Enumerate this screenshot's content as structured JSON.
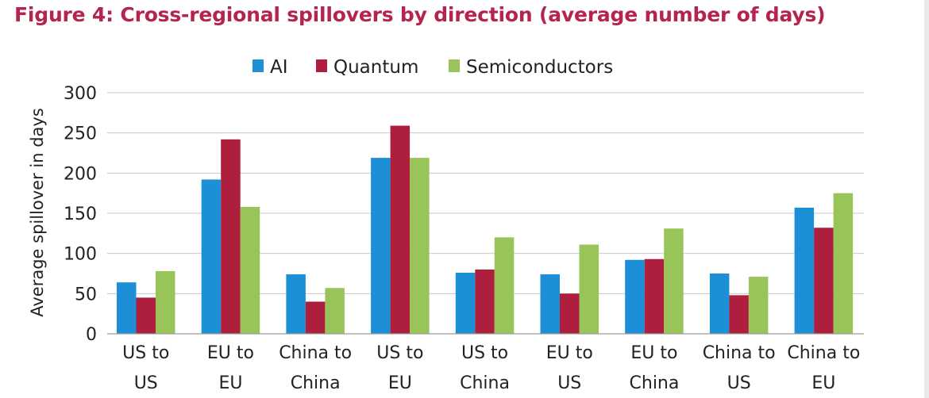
{
  "chart_data": {
    "type": "bar",
    "title": "Figure 4: Cross-regional spillovers by direction (average number of days)",
    "xlabel": "",
    "ylabel": "Average spillover in days",
    "ylim": [
      0,
      300
    ],
    "yticks": [
      0,
      50,
      100,
      150,
      200,
      250,
      300
    ],
    "grid": true,
    "legend_position": "top-center",
    "categories": [
      [
        "US to",
        "US"
      ],
      [
        "EU to",
        "EU"
      ],
      [
        "China to",
        "China"
      ],
      [
        "US to",
        "EU"
      ],
      [
        "US to",
        "China"
      ],
      [
        "EU to",
        "US"
      ],
      [
        "EU to",
        "China"
      ],
      [
        "China to",
        "US"
      ],
      [
        "China to",
        "EU"
      ]
    ],
    "series": [
      {
        "name": "AI",
        "color": "#1c8fd6",
        "values": [
          64,
          192,
          74,
          219,
          76,
          74,
          92,
          75,
          157
        ]
      },
      {
        "name": "Quantum",
        "color": "#ae1e3d",
        "values": [
          45,
          242,
          40,
          259,
          80,
          50,
          93,
          48,
          132
        ]
      },
      {
        "name": "Semiconductors",
        "color": "#98c45a",
        "values": [
          78,
          158,
          57,
          219,
          120,
          111,
          131,
          71,
          175
        ]
      }
    ]
  }
}
